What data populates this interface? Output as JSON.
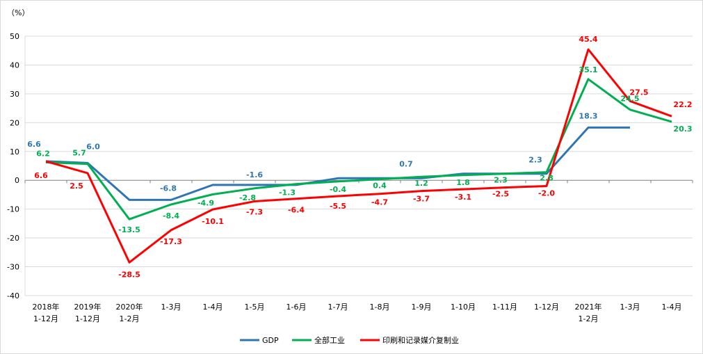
{
  "chart_data": {
    "type": "line",
    "unit_label": "（%）",
    "ylim": [
      -40,
      50
    ],
    "yticks": [
      -40,
      -30,
      -20,
      -10,
      0,
      10,
      20,
      30,
      40,
      50
    ],
    "grid": true,
    "legend_position": "bottom",
    "categories": [
      [
        "2018年",
        "1-12月"
      ],
      [
        "2019年",
        "1-12月"
      ],
      [
        "2020年",
        "1-2月"
      ],
      [
        "1-3月"
      ],
      [
        "1-4月"
      ],
      [
        "1-5月"
      ],
      [
        "1-6月"
      ],
      [
        "1-7月"
      ],
      [
        "1-8月"
      ],
      [
        "1-9月"
      ],
      [
        "1-10月"
      ],
      [
        "1-11月"
      ],
      [
        "1-12月"
      ],
      [
        "2021年",
        "1-2月"
      ],
      [
        "1-3月"
      ],
      [
        "1-4月"
      ]
    ],
    "series": [
      {
        "name": "GDP",
        "color": "#2E75B6",
        "values": [
          6.6,
          6.0,
          -6.8,
          -6.8,
          -1.6,
          -1.6,
          -1.6,
          0.7,
          0.7,
          0.7,
          2.3,
          2.3,
          2.3,
          18.3,
          18.3,
          null
        ],
        "labels": [
          "6.6",
          "6.0",
          null,
          "-6.8",
          null,
          "-1.6",
          null,
          null,
          null,
          "0.7",
          null,
          null,
          "2.3",
          "18.3",
          null,
          null
        ]
      },
      {
        "name": "全部工业",
        "color": "#00B050",
        "values": [
          6.2,
          5.7,
          -13.5,
          -8.4,
          -4.9,
          -2.8,
          -1.3,
          -0.4,
          0.4,
          1.2,
          1.8,
          2.3,
          2.8,
          35.1,
          24.5,
          20.3
        ],
        "labels": [
          "6.2",
          "5.7",
          "-13.5",
          "-8.4",
          "-4.9",
          "-2.8",
          "-1.3",
          "-0.4",
          "0.4",
          "1.2",
          "1.8",
          "2.3",
          "2.8",
          "35.1",
          "24.5",
          "20.3"
        ]
      },
      {
        "name": "印刷和记录媒介复制业",
        "color": "#FF0000",
        "values": [
          6.6,
          2.5,
          -28.5,
          -17.3,
          -10.1,
          -7.3,
          -6.4,
          -5.5,
          -4.7,
          -3.7,
          -3.1,
          -2.5,
          -2.0,
          45.4,
          27.5,
          22.2
        ],
        "labels": [
          "6.6",
          "2.5",
          "-28.5",
          "-17.3",
          "-10.1",
          "-7.3",
          "-6.4",
          "-5.5",
          "-4.7",
          "-3.7",
          "-3.1",
          "-2.5",
          "-2.0",
          "45.4",
          "27.5",
          "22.2"
        ]
      }
    ]
  }
}
